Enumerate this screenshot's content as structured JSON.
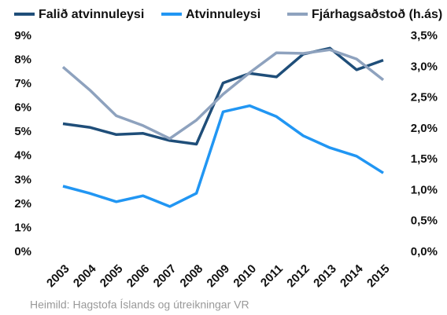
{
  "chart_data": {
    "type": "line",
    "source": "Heimild: Hagstofa Íslands og útreikningar VR",
    "categories": [
      "2003",
      "2004",
      "2005",
      "2006",
      "2007",
      "2008",
      "2009",
      "2010",
      "2011",
      "2012",
      "2013",
      "2014",
      "2015"
    ],
    "series": [
      {
        "name": "Falið atvinnuleysi",
        "color": "#1f4e79",
        "values": [
          5.35,
          5.2,
          4.9,
          4.95,
          4.65,
          4.5,
          7.05,
          7.45,
          7.3,
          8.25,
          8.5,
          7.6,
          8.0
        ]
      },
      {
        "name": "Atvinnuleysi",
        "color": "#2196f3",
        "values": [
          2.75,
          2.45,
          2.1,
          2.35,
          1.9,
          2.45,
          5.85,
          6.1,
          5.65,
          4.85,
          4.35,
          4.0,
          3.3
        ]
      },
      {
        "name": "Fjárhagsaðstoð (h.ás)",
        "color": "#8ea2be",
        "axis": "y2",
        "values": [
          3.0,
          2.63,
          2.21,
          2.05,
          1.84,
          2.14,
          2.56,
          2.91,
          3.23,
          3.22,
          3.28,
          3.13,
          2.79
        ]
      }
    ],
    "ylim": [
      0,
      9
    ],
    "yticks": [
      {
        "value": 0,
        "label": "0%"
      },
      {
        "value": 1,
        "label": "1%"
      },
      {
        "value": 2,
        "label": "2%"
      },
      {
        "value": 3,
        "label": "3%"
      },
      {
        "value": 4,
        "label": "4%"
      },
      {
        "value": 5,
        "label": "5%"
      },
      {
        "value": 6,
        "label": "6%"
      },
      {
        "value": 7,
        "label": "7%"
      },
      {
        "value": 8,
        "label": "8%"
      },
      {
        "value": 9,
        "label": "9%"
      }
    ],
    "y2lim": [
      0,
      3.5
    ],
    "y2ticks": [
      {
        "value": 0,
        "label": "0,0%"
      },
      {
        "value": 0.5,
        "label": "0,5%"
      },
      {
        "value": 1,
        "label": "1,0%"
      },
      {
        "value": 1.5,
        "label": "1,5%"
      },
      {
        "value": 2,
        "label": "2,0%"
      },
      {
        "value": 2.5,
        "label": "2,5%"
      },
      {
        "value": 3,
        "label": "3,0%"
      },
      {
        "value": 3.5,
        "label": "3,5%"
      }
    ],
    "legend": "top"
  }
}
